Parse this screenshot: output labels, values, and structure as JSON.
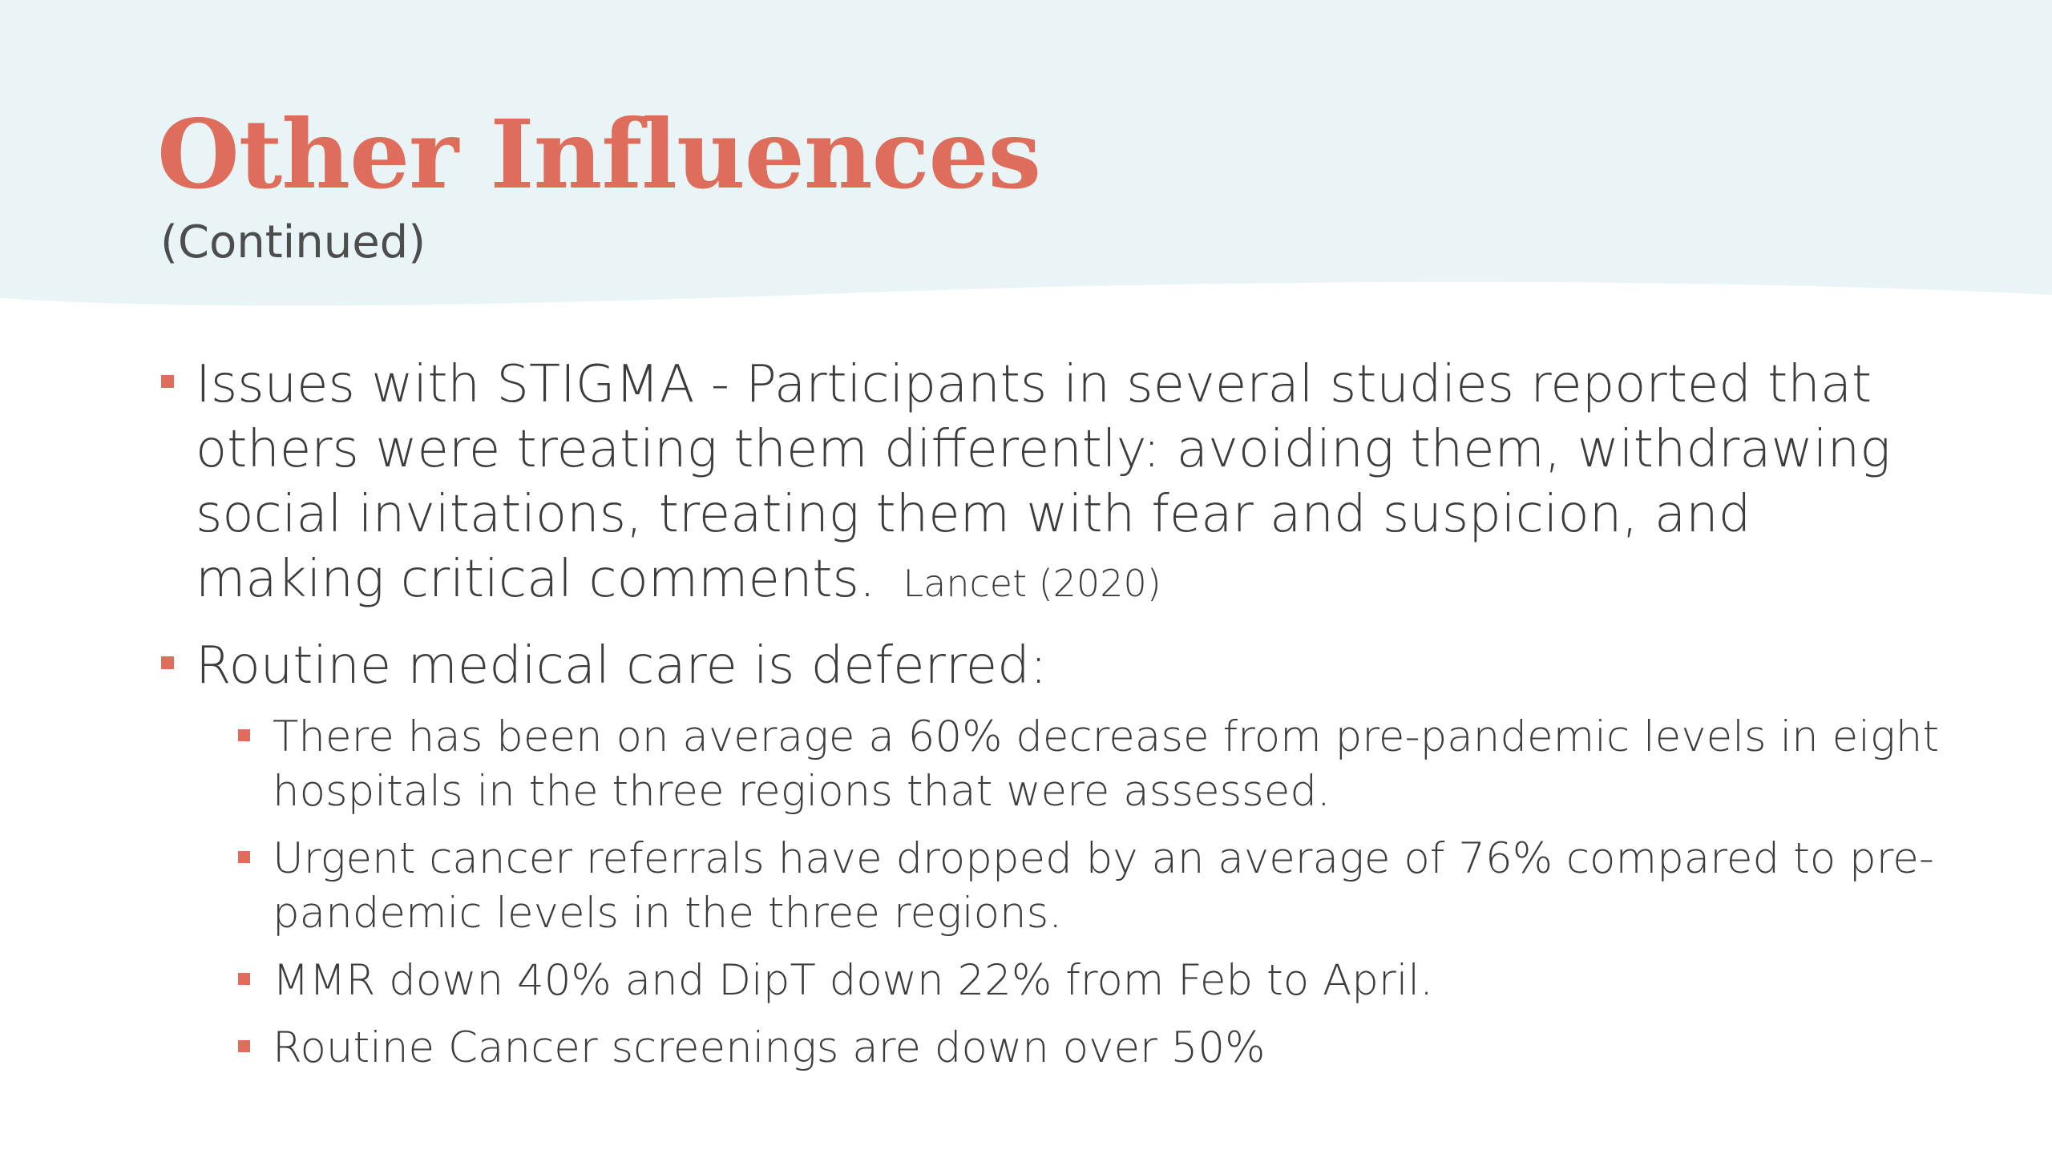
{
  "slide": {
    "title": "Other Influences",
    "subtitle": "(Continued)",
    "colors": {
      "header_band": "#e9f4f7",
      "title": "#de6d5b",
      "subtitle": "#4d4d4d",
      "body_text": "#3c3c3c",
      "bullet_marker": "#de6d5b"
    },
    "bullets": [
      {
        "text": "Issues with STIGMA - Participants in several studies reported that others were treating them differently: avoiding them, withdrawing social invitations, treating them with fear and suspicion, and making critical comments.",
        "citation": "Lancet (2020)"
      },
      {
        "text": "Routine medical care is deferred:",
        "subbullets": [
          "There has been on average a 60% decrease from pre-pandemic levels in eight hospitals in the three regions that were assessed.",
          "Urgent cancer referrals have dropped by an average of 76% compared to pre-pandemic levels in the three regions.",
          "MMR down 40% and DipT down 22% from Feb to April.",
          "Routine Cancer screenings are down over 50%"
        ]
      }
    ]
  }
}
